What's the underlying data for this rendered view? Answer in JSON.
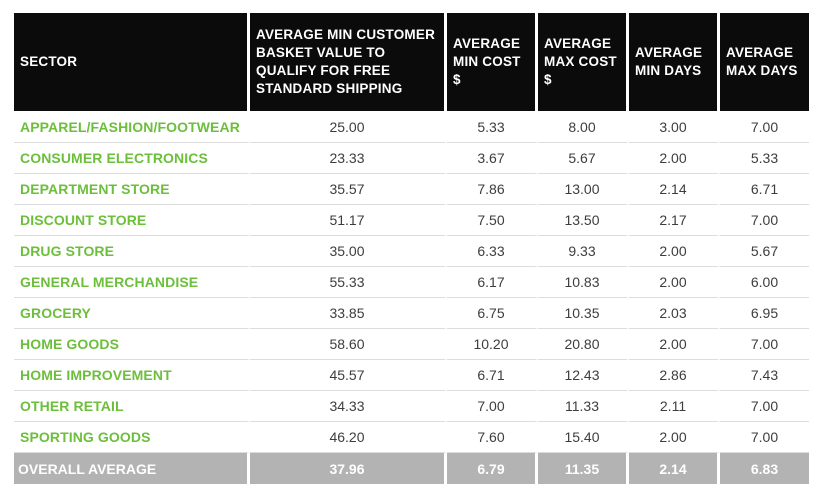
{
  "table": {
    "headers": [
      "SECTOR",
      "AVERAGE MIN CUSTOMER BASKET VALUE TO QUALIFY FOR FREE STANDARD SHIPPING",
      "AVERAGE MIN COST $",
      "AVERAGE MAX COST $",
      "AVERAGE MIN DAYS",
      "AVERAGE MAX DAYS"
    ],
    "rows": [
      [
        "APPAREL/FASHION/FOOTWEAR",
        "25.00",
        "5.33",
        "8.00",
        "3.00",
        "7.00"
      ],
      [
        "CONSUMER ELECTRONICS",
        "23.33",
        "3.67",
        "5.67",
        "2.00",
        "5.33"
      ],
      [
        "DEPARTMENT STORE",
        "35.57",
        "7.86",
        "13.00",
        "2.14",
        "6.71"
      ],
      [
        "DISCOUNT STORE",
        "51.17",
        "7.50",
        "13.50",
        "2.17",
        "7.00"
      ],
      [
        "DRUG STORE",
        "35.00",
        "6.33",
        "9.33",
        "2.00",
        "5.67"
      ],
      [
        "GENERAL MERCHANDISE",
        "55.33",
        "6.17",
        "10.83",
        "2.00",
        "6.00"
      ],
      [
        "GROCERY",
        "33.85",
        "6.75",
        "10.35",
        "2.03",
        "6.95"
      ],
      [
        "HOME GOODS",
        "58.60",
        "10.20",
        "20.80",
        "2.00",
        "7.00"
      ],
      [
        "HOME IMPROVEMENT",
        "45.57",
        "6.71",
        "12.43",
        "2.86",
        "7.43"
      ],
      [
        "OTHER RETAIL",
        "34.33",
        "7.00",
        "11.33",
        "2.11",
        "7.00"
      ],
      [
        "SPORTING GOODS",
        "46.20",
        "7.60",
        "15.40",
        "2.00",
        "7.00"
      ]
    ],
    "footer": [
      "OVERALL AVERAGE",
      "37.96",
      "6.79",
      "11.35",
      "2.14",
      "6.83"
    ]
  },
  "colors": {
    "header_bg": "#0b0b0b",
    "header_text": "#ffffff",
    "sector_text": "#6cbf3b",
    "footer_bg": "#b3b3b3",
    "footer_text": "#ffffff",
    "row_divider": "#dcdcdc"
  }
}
